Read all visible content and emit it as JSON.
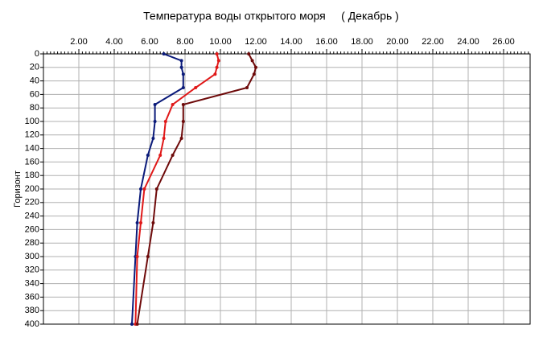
{
  "chart_data": {
    "type": "line",
    "title": "Температура воды открытого моря     ( Декабрь )",
    "y_label": "Горизонт",
    "y": [
      0,
      10,
      20,
      30,
      50,
      75,
      100,
      125,
      150,
      200,
      250,
      300,
      400
    ],
    "series": [
      {
        "color": "#0a1a7a",
        "values": [
          6.8,
          7.8,
          7.8,
          7.9,
          7.9,
          6.3,
          6.3,
          6.2,
          5.9,
          5.5,
          5.3,
          5.2,
          5.0
        ]
      },
      {
        "color": "#e01818",
        "values": [
          9.8,
          9.9,
          9.8,
          9.7,
          8.6,
          7.3,
          6.9,
          6.8,
          6.6,
          5.7,
          5.5,
          5.3,
          5.2
        ]
      },
      {
        "color": "#6e0a0a",
        "values": [
          11.6,
          11.8,
          12.0,
          11.9,
          11.5,
          7.9,
          7.9,
          7.8,
          7.3,
          6.4,
          6.2,
          5.9,
          5.3
        ]
      }
    ],
    "xlim": [
      0,
      27.5
    ],
    "xticks": [
      {
        "value": 2,
        "label": "2.00"
      },
      {
        "value": 4,
        "label": "4.00"
      },
      {
        "value": 6,
        "label": "6.00"
      },
      {
        "value": 8,
        "label": "8.00"
      },
      {
        "value": 10,
        "label": "10.00"
      },
      {
        "value": 12,
        "label": "12.00"
      },
      {
        "value": 14,
        "label": "14.00"
      },
      {
        "value": 16,
        "label": "16.00"
      },
      {
        "value": 18,
        "label": "18.00"
      },
      {
        "value": 20,
        "label": "20.00"
      },
      {
        "value": 22,
        "label": "22.00"
      },
      {
        "value": 24,
        "label": "24.00"
      },
      {
        "value": 26,
        "label": "26.00"
      }
    ],
    "ylim": [
      0,
      400
    ],
    "yticks": [
      0,
      20,
      40,
      60,
      80,
      100,
      120,
      140,
      160,
      180,
      200,
      220,
      240,
      260,
      280,
      300,
      320,
      340,
      360,
      380,
      400
    ],
    "grid": true
  }
}
